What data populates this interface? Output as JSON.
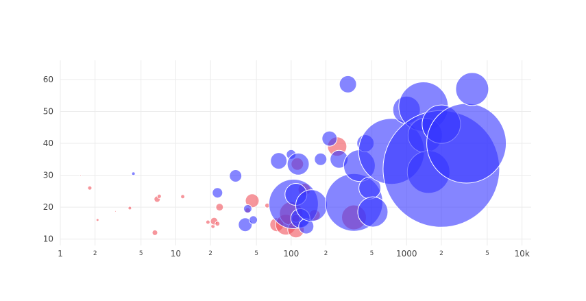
{
  "chart_data": {
    "type": "scatter",
    "subtype": "bubble",
    "title": "",
    "xlabel": "",
    "ylabel": "",
    "x_scale": "log",
    "xlim": [
      1,
      12000
    ],
    "ylim": [
      8,
      66
    ],
    "grid": true,
    "legend": "none",
    "x_major_ticks": [
      {
        "value": 1,
        "label": "1"
      },
      {
        "value": 10,
        "label": "10"
      },
      {
        "value": 100,
        "label": "100"
      },
      {
        "value": 1000,
        "label": "1000"
      },
      {
        "value": 10000,
        "label": "10k"
      }
    ],
    "x_minor_ticks": [
      {
        "value": 2,
        "label": "2"
      },
      {
        "value": 5,
        "label": "5"
      },
      {
        "value": 20,
        "label": "2"
      },
      {
        "value": 50,
        "label": "5"
      },
      {
        "value": 200,
        "label": "2"
      },
      {
        "value": 500,
        "label": "5"
      },
      {
        "value": 2000,
        "label": "2"
      },
      {
        "value": 5000,
        "label": "5"
      }
    ],
    "y_ticks": [
      10,
      20,
      30,
      40,
      50,
      60
    ],
    "series": [
      {
        "name": "red",
        "color": "#f0505a",
        "opacity": 0.6,
        "points": [
          {
            "x": 1.5,
            "y": 30,
            "size": 1
          },
          {
            "x": 1.8,
            "y": 26,
            "size": 3
          },
          {
            "x": 2.1,
            "y": 16,
            "size": 2
          },
          {
            "x": 3.0,
            "y": 18.7,
            "size": 1
          },
          {
            "x": 4.0,
            "y": 19.7,
            "size": 2.5
          },
          {
            "x": 6.6,
            "y": 12,
            "size": 4
          },
          {
            "x": 6.9,
            "y": 22.5,
            "size": 4.5
          },
          {
            "x": 7.2,
            "y": 23.4,
            "size": 3
          },
          {
            "x": 11.5,
            "y": 23.3,
            "size": 3
          },
          {
            "x": 19,
            "y": 15.3,
            "size": 3
          },
          {
            "x": 21,
            "y": 14,
            "size": 3
          },
          {
            "x": 21.5,
            "y": 15.6,
            "size": 5.5
          },
          {
            "x": 23,
            "y": 14.8,
            "size": 3.5
          },
          {
            "x": 24,
            "y": 20,
            "size": 5.5
          },
          {
            "x": 42,
            "y": 19,
            "size": 4
          },
          {
            "x": 46,
            "y": 22,
            "size": 10
          },
          {
            "x": 62,
            "y": 20.5,
            "size": 3.5
          },
          {
            "x": 75,
            "y": 14.5,
            "size": 10
          },
          {
            "x": 90,
            "y": 14.5,
            "size": 15
          },
          {
            "x": 100,
            "y": 18,
            "size": 17
          },
          {
            "x": 110,
            "y": 13,
            "size": 12
          },
          {
            "x": 110,
            "y": 16.5,
            "size": 6
          },
          {
            "x": 113,
            "y": 33.5,
            "size": 9
          },
          {
            "x": 130,
            "y": 25.5,
            "size": 9
          },
          {
            "x": 160,
            "y": 17.5,
            "size": 8
          },
          {
            "x": 250,
            "y": 39,
            "size": 14
          },
          {
            "x": 350,
            "y": 16.8,
            "size": 18
          }
        ]
      },
      {
        "name": "blue",
        "color": "#3333ff",
        "opacity": 0.6,
        "points": [
          {
            "x": 4.3,
            "y": 30.5,
            "size": 2.5
          },
          {
            "x": 23,
            "y": 24.5,
            "size": 7.5
          },
          {
            "x": 33,
            "y": 29.8,
            "size": 9
          },
          {
            "x": 40,
            "y": 14.5,
            "size": 10
          },
          {
            "x": 42,
            "y": 19.5,
            "size": 6
          },
          {
            "x": 47,
            "y": 16,
            "size": 6
          },
          {
            "x": 78,
            "y": 34.5,
            "size": 12
          },
          {
            "x": 100,
            "y": 36.5,
            "size": 7
          },
          {
            "x": 105,
            "y": 21,
            "size": 36
          },
          {
            "x": 110,
            "y": 24,
            "size": 16
          },
          {
            "x": 115,
            "y": 33.5,
            "size": 16
          },
          {
            "x": 120,
            "y": 16.5,
            "size": 14
          },
          {
            "x": 135,
            "y": 14,
            "size": 11
          },
          {
            "x": 150,
            "y": 20.5,
            "size": 23
          },
          {
            "x": 180,
            "y": 35,
            "size": 9
          },
          {
            "x": 215,
            "y": 41.5,
            "size": 11
          },
          {
            "x": 260,
            "y": 35,
            "size": 13
          },
          {
            "x": 310,
            "y": 58.5,
            "size": 12.5
          },
          {
            "x": 350,
            "y": 21.5,
            "size": 42
          },
          {
            "x": 390,
            "y": 33,
            "size": 23
          },
          {
            "x": 440,
            "y": 40,
            "size": 12.5
          },
          {
            "x": 480,
            "y": 26,
            "size": 16
          },
          {
            "x": 510,
            "y": 18.5,
            "size": 22
          },
          {
            "x": 740,
            "y": 37.5,
            "size": 48
          },
          {
            "x": 1000,
            "y": 50.5,
            "size": 20
          },
          {
            "x": 1400,
            "y": 51.5,
            "size": 36
          },
          {
            "x": 1450,
            "y": 42.5,
            "size": 25
          },
          {
            "x": 1550,
            "y": 31,
            "size": 31
          },
          {
            "x": 2000,
            "y": 32,
            "size": 85
          },
          {
            "x": 2000,
            "y": 46,
            "size": 28
          },
          {
            "x": 3300,
            "y": 40,
            "size": 58
          },
          {
            "x": 3700,
            "y": 57,
            "size": 24
          }
        ]
      }
    ]
  }
}
